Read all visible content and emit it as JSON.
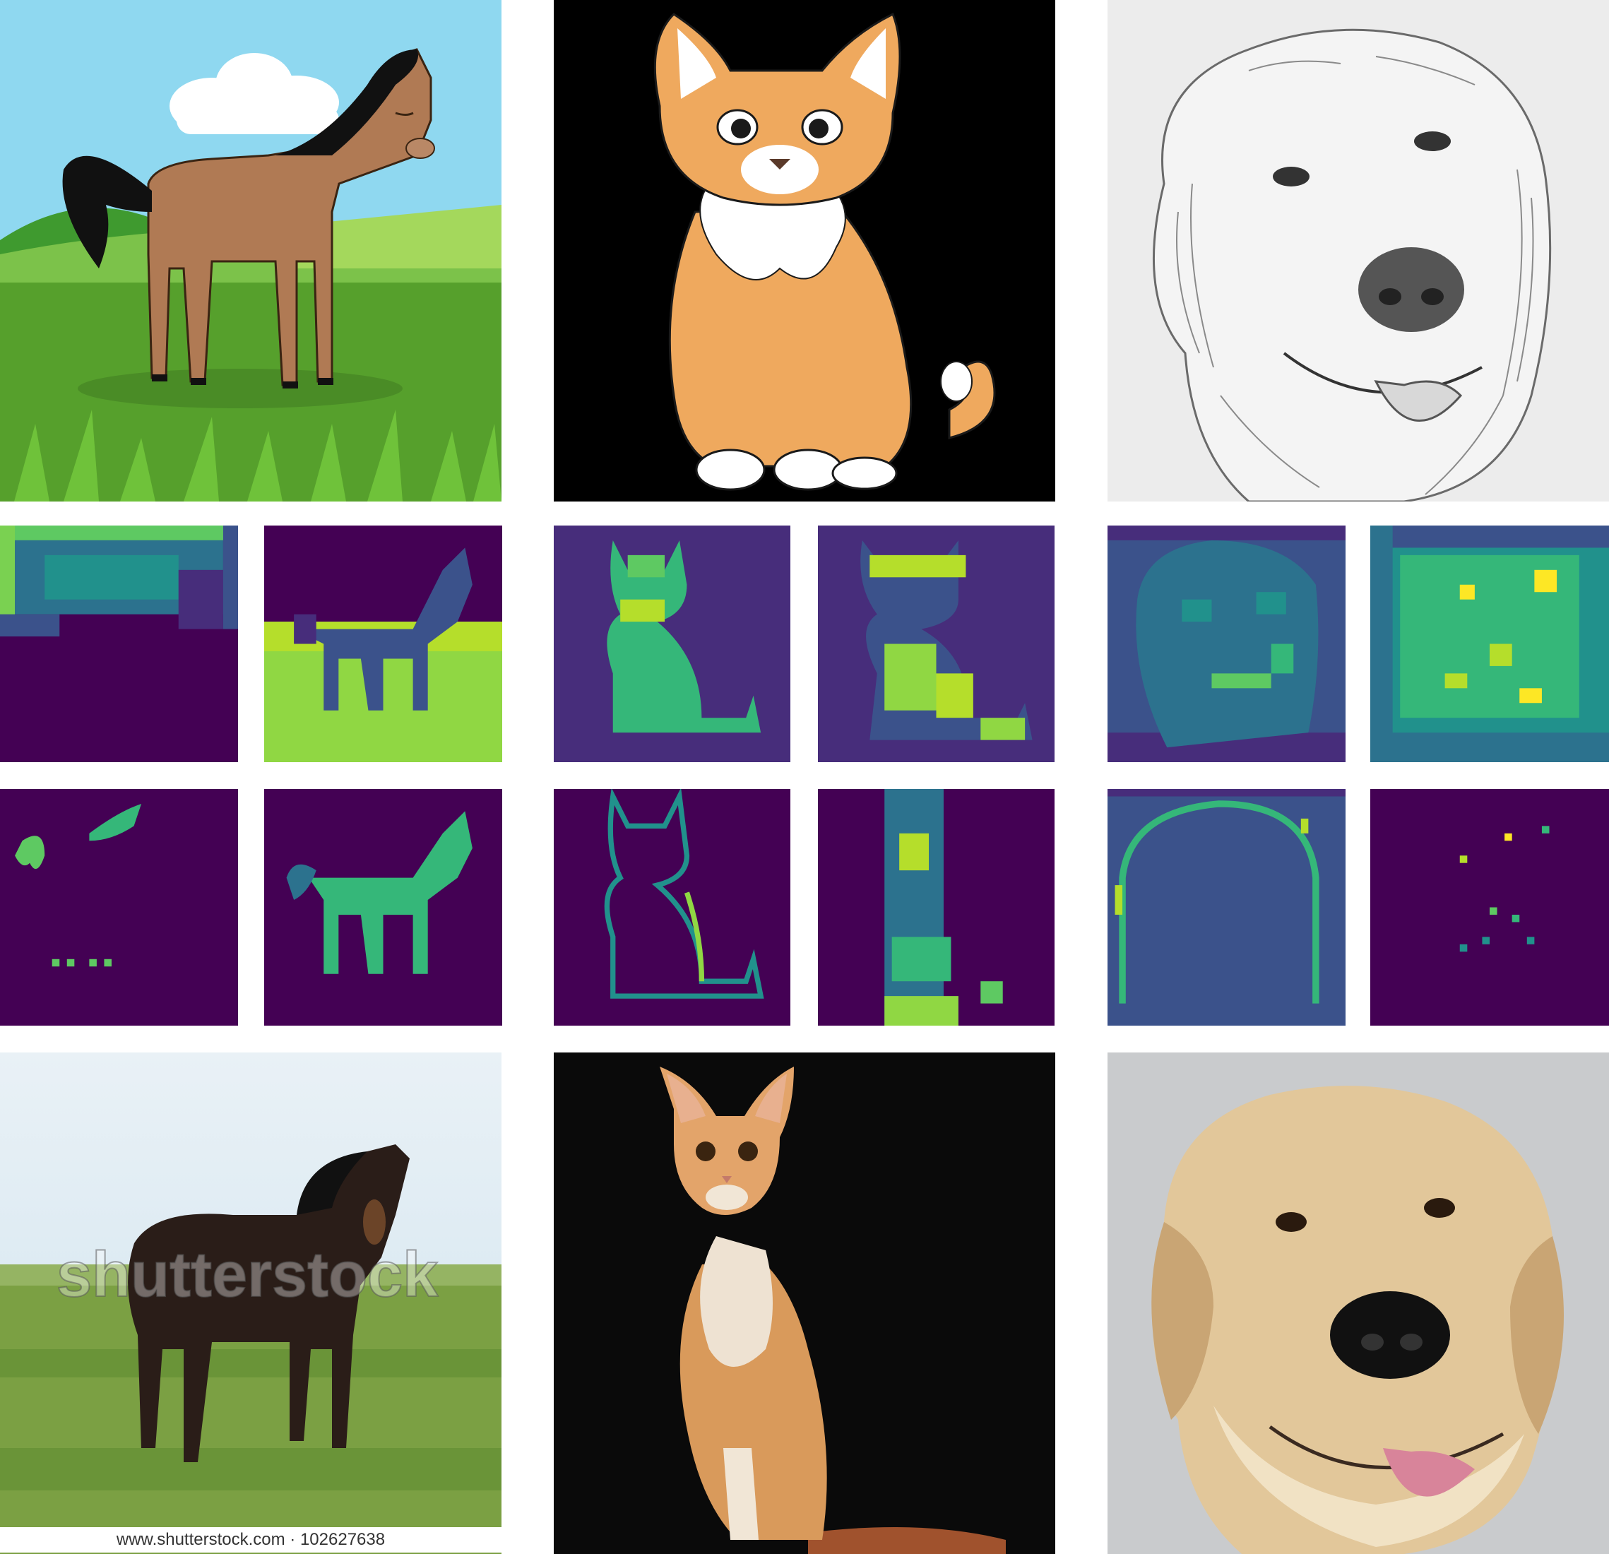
{
  "grid": {
    "columns": [
      {
        "subject": "horse",
        "source_style": "cartoon",
        "target_style": "photo"
      },
      {
        "subject": "cat",
        "source_style": "cartoon",
        "target_style": "photo"
      },
      {
        "subject": "dog",
        "source_style": "pencil sketch",
        "target_style": "photo"
      }
    ],
    "rows": [
      "source-image",
      "feature-maps-a",
      "feature-maps-b",
      "translated-image"
    ]
  },
  "watermark": {
    "overlay_text": "shutterstock",
    "caption": "www.shutterstock.com · 102627638"
  },
  "colors": {
    "viridis_low": "#440154",
    "viridis_mid": "#21918c",
    "viridis_high": "#fde725",
    "sky": "#8fd8f0",
    "grass": "#56a02c",
    "horse_brown": "#b07a54",
    "cat_orange": "#efa95e",
    "photo_bg_dark": "#0a0a0a"
  }
}
